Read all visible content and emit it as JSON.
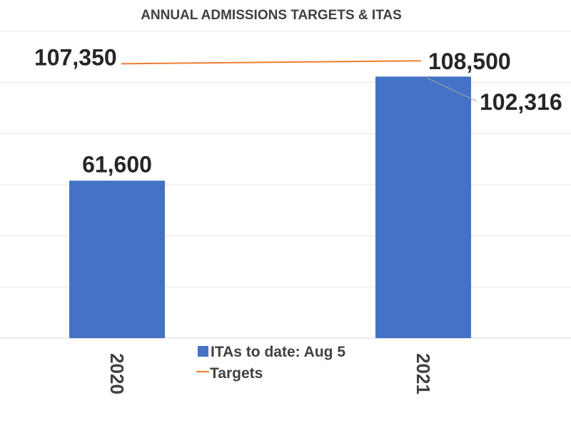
{
  "chart_data": {
    "type": "bar",
    "title": "ANNUAL ADMISSIONS TARGETS & ITAS",
    "categories": [
      "2020",
      "2021"
    ],
    "series": [
      {
        "name": "ITAs to date: Aug 5",
        "type": "bar",
        "color": "#4472c4",
        "values": [
          61600,
          102316
        ],
        "labels": [
          "61,600",
          "102,316"
        ]
      },
      {
        "name": "Targets",
        "type": "line",
        "color": "#ed7d31",
        "values": [
          107350,
          108500
        ],
        "labels": [
          "107,350",
          "108,500"
        ]
      }
    ],
    "ylim": [
      0,
      120000
    ],
    "grid": true,
    "legend": "bottom-center",
    "xlabel": "",
    "ylabel": ""
  }
}
